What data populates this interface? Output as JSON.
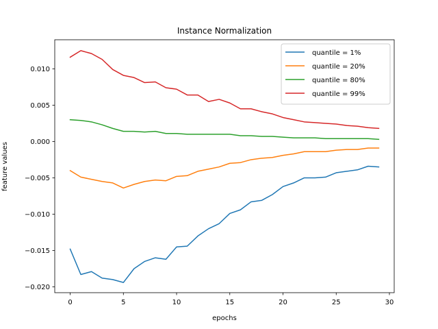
{
  "chart_data": {
    "type": "line",
    "title": "Instance Normalization",
    "xlabel": "epochs",
    "ylabel": "feature values",
    "xlim": [
      -1.45,
      30.45
    ],
    "ylim": [
      -0.0208,
      0.014
    ],
    "xticks": [
      0,
      5,
      10,
      15,
      20,
      25,
      30
    ],
    "xtick_labels": [
      "0",
      "5",
      "10",
      "15",
      "20",
      "25",
      "30"
    ],
    "yticks": [
      -0.02,
      -0.015,
      -0.01,
      -0.005,
      0.0,
      0.005,
      0.01
    ],
    "ytick_labels": [
      "−0.020",
      "−0.015",
      "−0.010",
      "−0.005",
      "0.000",
      "0.005",
      "0.010"
    ],
    "grid": false,
    "legend_position": "top-right",
    "x": [
      0,
      1,
      2,
      3,
      4,
      5,
      6,
      7,
      8,
      9,
      10,
      11,
      12,
      13,
      14,
      15,
      16,
      17,
      18,
      19,
      20,
      21,
      22,
      23,
      24,
      25,
      26,
      27,
      28,
      29
    ],
    "series": [
      {
        "name": "quantile = 1%",
        "color": "#1f77b4",
        "values": [
          -0.0148,
          -0.0183,
          -0.0179,
          -0.0188,
          -0.019,
          -0.0194,
          -0.0175,
          -0.0165,
          -0.016,
          -0.0162,
          -0.0145,
          -0.0144,
          -0.013,
          -0.012,
          -0.0113,
          -0.0099,
          -0.0094,
          -0.0083,
          -0.0081,
          -0.0073,
          -0.0062,
          -0.0057,
          -0.005,
          -0.005,
          -0.0049,
          -0.0043,
          -0.0041,
          -0.0039,
          -0.0034,
          -0.0035
        ]
      },
      {
        "name": "quantile = 20%",
        "color": "#ff7f0e",
        "values": [
          -0.004,
          -0.0049,
          -0.0052,
          -0.0055,
          -0.0057,
          -0.0064,
          -0.0059,
          -0.0055,
          -0.0053,
          -0.0054,
          -0.0048,
          -0.0047,
          -0.0041,
          -0.0038,
          -0.0035,
          -0.003,
          -0.0029,
          -0.0025,
          -0.0023,
          -0.0022,
          -0.0019,
          -0.0017,
          -0.0014,
          -0.0014,
          -0.0014,
          -0.0012,
          -0.0011,
          -0.0011,
          -0.0009,
          -0.0009
        ]
      },
      {
        "name": "quantile = 80%",
        "color": "#2ca02c",
        "values": [
          0.003,
          0.0029,
          0.0027,
          0.0023,
          0.0018,
          0.0014,
          0.0014,
          0.0013,
          0.0014,
          0.0011,
          0.0011,
          0.001,
          0.001,
          0.001,
          0.001,
          0.001,
          0.0008,
          0.0008,
          0.0007,
          0.0007,
          0.0006,
          0.0005,
          0.0005,
          0.0005,
          0.0004,
          0.0004,
          0.0004,
          0.0004,
          0.0004,
          0.0003
        ]
      },
      {
        "name": "quantile = 99%",
        "color": "#d62728",
        "values": [
          0.0116,
          0.0125,
          0.0121,
          0.0113,
          0.0099,
          0.0091,
          0.0088,
          0.0081,
          0.0082,
          0.0074,
          0.0072,
          0.0064,
          0.0064,
          0.0055,
          0.0058,
          0.0053,
          0.0045,
          0.0045,
          0.0041,
          0.0038,
          0.0033,
          0.003,
          0.0027,
          0.0026,
          0.0025,
          0.0024,
          0.0022,
          0.0021,
          0.0019,
          0.0018
        ]
      }
    ]
  }
}
